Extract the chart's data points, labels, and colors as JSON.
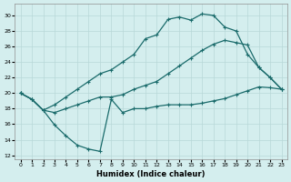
{
  "xlabel": "Humidex (Indice chaleur)",
  "bg_color": "#d4eeee",
  "line_color": "#1a6b6b",
  "grid_color": "#b8d8d8",
  "xlim": [
    -0.5,
    23.5
  ],
  "ylim": [
    11.5,
    31.5
  ],
  "xticks": [
    0,
    1,
    2,
    3,
    4,
    5,
    6,
    7,
    8,
    9,
    10,
    11,
    12,
    13,
    14,
    15,
    16,
    17,
    18,
    19,
    20,
    21,
    22,
    23
  ],
  "yticks": [
    12,
    14,
    16,
    18,
    20,
    22,
    24,
    26,
    28,
    30
  ],
  "curve_top_x": [
    0,
    1,
    2,
    3,
    4,
    5,
    6,
    7,
    8,
    9,
    10,
    11,
    12,
    13,
    14,
    15,
    16,
    17,
    18,
    19,
    20,
    21,
    22,
    23
  ],
  "curve_top_y": [
    20,
    19.2,
    17.8,
    18.5,
    19.5,
    20.5,
    21.5,
    22.5,
    23.0,
    24.0,
    25.0,
    27.0,
    27.5,
    29.5,
    29.8,
    29.4,
    30.2,
    30.0,
    28.5,
    28.0,
    25.0,
    23.3,
    22.0,
    20.5
  ],
  "curve_mid_x": [
    0,
    1,
    2,
    3,
    4,
    5,
    6,
    7,
    8,
    9,
    10,
    11,
    12,
    13,
    14,
    15,
    16,
    17,
    18,
    19,
    20,
    21,
    22,
    23
  ],
  "curve_mid_y": [
    20,
    19.2,
    17.8,
    17.5,
    18.0,
    18.5,
    19.0,
    19.5,
    19.5,
    19.8,
    20.5,
    21.0,
    21.5,
    22.5,
    23.5,
    24.5,
    25.5,
    26.3,
    26.8,
    26.5,
    26.2,
    23.3,
    22.0,
    20.5
  ],
  "curve_bot_x": [
    0,
    1,
    2,
    3,
    4,
    5,
    6,
    7,
    8,
    9,
    10,
    11,
    12,
    13,
    14,
    15,
    16,
    17,
    18,
    19,
    20,
    21,
    22,
    23
  ],
  "curve_bot_y": [
    20,
    19.2,
    17.8,
    15.9,
    14.5,
    13.3,
    12.8,
    12.5,
    19.2,
    17.5,
    18.0,
    18.0,
    18.3,
    18.5,
    18.5,
    18.5,
    18.7,
    19.0,
    19.3,
    19.8,
    20.3,
    20.8,
    20.7,
    20.5
  ]
}
